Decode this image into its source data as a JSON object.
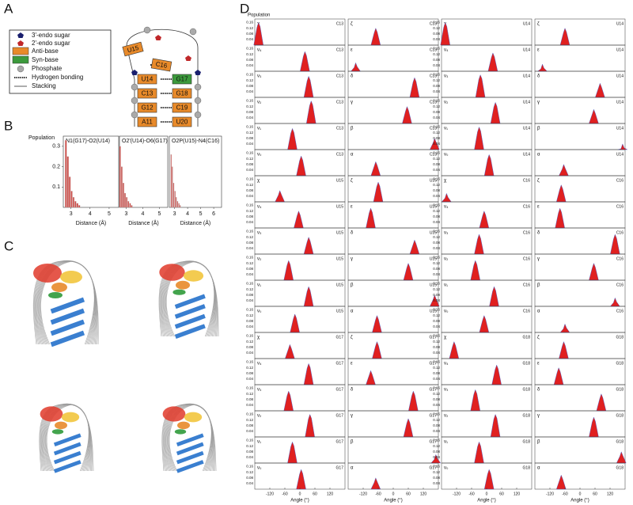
{
  "panel_a": {
    "label": "A",
    "legend": [
      "3'-endo sugar",
      "2'-endo sugar",
      "Anti-base",
      "Syn-base",
      "Phosphate",
      "Hydrogen bonding",
      "Stacking"
    ],
    "nucleotides": [
      "U15",
      "C16",
      "U14",
      "G17",
      "C13",
      "G18",
      "G12",
      "C19",
      "A11",
      "U20"
    ]
  },
  "panel_b": {
    "label": "B",
    "ylabel": "Population",
    "xlabel": "Distance (Å)",
    "ylim": [
      0,
      0.35
    ],
    "yticks": [
      0.1,
      0.2,
      0.3
    ],
    "plots": [
      {
        "title": "N1(G17)-O2(U14)",
        "xlim": [
          2.6,
          5.5
        ],
        "xticks": [
          3,
          4,
          5
        ],
        "bins": [
          2.7,
          2.8,
          2.9,
          3.0,
          3.1,
          3.2,
          3.3,
          3.4,
          3.5
        ],
        "values": [
          0.33,
          0.25,
          0.15,
          0.08,
          0.05,
          0.03,
          0.02,
          0.01
        ]
      },
      {
        "title": "O2'(U14)-O6(G17)",
        "xlim": [
          2.6,
          5.5
        ],
        "xticks": [
          3,
          4,
          5
        ],
        "bins": [
          2.6,
          2.7,
          2.8,
          2.9,
          3.0,
          3.1,
          3.2,
          3.3,
          3.4
        ],
        "values": [
          0.3,
          0.2,
          0.12,
          0.07,
          0.05,
          0.03,
          0.02,
          0.01
        ]
      },
      {
        "title": "O2P(U15)-N4(C16)",
        "xlim": [
          2.6,
          6.6
        ],
        "xticks": [
          3,
          4,
          5,
          6
        ],
        "bins": [
          2.7,
          2.8,
          2.9,
          3.0,
          3.1,
          3.2,
          3.3,
          3.4,
          3.5
        ],
        "values": [
          0.26,
          0.2,
          0.12,
          0.08,
          0.05,
          0.03,
          0.02,
          0.01
        ]
      }
    ]
  },
  "panel_c": {
    "label": "C"
  },
  "panel_d": {
    "label": "D",
    "ylabel": "Population",
    "xlabel": "Angle (°)",
    "xlim": [
      -180,
      180
    ],
    "ylim": [
      0,
      0.18
    ],
    "xticks": [
      -120,
      -60,
      0,
      60,
      120
    ],
    "yticks": [
      0.04,
      0.08,
      0.12,
      0.16
    ],
    "sugar_angles": [
      "χ",
      "ν₄",
      "ν₃",
      "ν₂",
      "ν₁",
      "ν₀"
    ],
    "backbone_angles": [
      "ζ",
      "ε",
      "δ",
      "γ",
      "β",
      "α"
    ],
    "residues": [
      {
        "name": "C13",
        "sugar_peak_angles": [
          -165,
          20,
          35,
          45,
          -30,
          5
        ],
        "sugar_peak_heights": [
          0.16,
          0.14,
          0.15,
          0.16,
          0.15,
          0.14
        ],
        "backbone_peak_angles": [
          -70,
          -150,
          85,
          55,
          165,
          -70
        ],
        "backbone_peak_heights": [
          0.12,
          0.06,
          0.14,
          0.12,
          0.08,
          0.1
        ]
      },
      {
        "name": "U14",
        "sugar_peak_angles": [
          -165,
          25,
          -25,
          35,
          -30,
          10
        ],
        "sugar_peak_heights": [
          0.16,
          0.13,
          0.16,
          0.15,
          0.16,
          0.15
        ],
        "backbone_peak_angles": [
          -60,
          -150,
          80,
          55,
          170,
          -65
        ],
        "backbone_peak_heights": [
          0.12,
          0.05,
          0.1,
          0.1,
          0.04,
          0.08
        ]
      },
      {
        "name": "U15",
        "sugar_peak_angles": [
          -80,
          -5,
          35,
          -45,
          35,
          -20
        ],
        "sugar_peak_heights": [
          0.08,
          0.12,
          0.12,
          0.14,
          0.14,
          0.13
        ],
        "backbone_peak_angles": [
          -60,
          -90,
          85,
          60,
          165,
          -65
        ],
        "backbone_peak_heights": [
          0.14,
          0.14,
          0.1,
          0.12,
          0.08,
          0.12
        ]
      },
      {
        "name": "C16",
        "sugar_peak_angles": [
          -160,
          -10,
          -30,
          -45,
          30,
          -10
        ],
        "sugar_peak_heights": [
          0.06,
          0.12,
          0.14,
          0.14,
          0.14,
          0.12
        ],
        "backbone_peak_angles": [
          -75,
          -80,
          140,
          55,
          140,
          -60
        ],
        "backbone_peak_heights": [
          0.12,
          0.14,
          0.14,
          0.12,
          0.06,
          0.06
        ]
      },
      {
        "name": "G17",
        "sugar_peak_angles": [
          -40,
          35,
          -45,
          40,
          -30,
          5
        ],
        "sugar_peak_heights": [
          0.1,
          0.15,
          0.14,
          0.16,
          0.15,
          0.14
        ],
        "backbone_peak_angles": [
          -65,
          -90,
          80,
          60,
          170,
          -70
        ],
        "backbone_peak_heights": [
          0.12,
          0.1,
          0.14,
          0.13,
          0.06,
          0.08
        ]
      },
      {
        "name": "G18",
        "sugar_peak_angles": [
          -130,
          40,
          -45,
          35,
          -30,
          10
        ],
        "sugar_peak_heights": [
          0.12,
          0.14,
          0.15,
          0.16,
          0.15,
          0.14
        ],
        "backbone_peak_angles": [
          -65,
          -85,
          85,
          55,
          165,
          -75
        ],
        "backbone_peak_heights": [
          0.12,
          0.12,
          0.12,
          0.14,
          0.08,
          0.1
        ]
      }
    ]
  }
}
